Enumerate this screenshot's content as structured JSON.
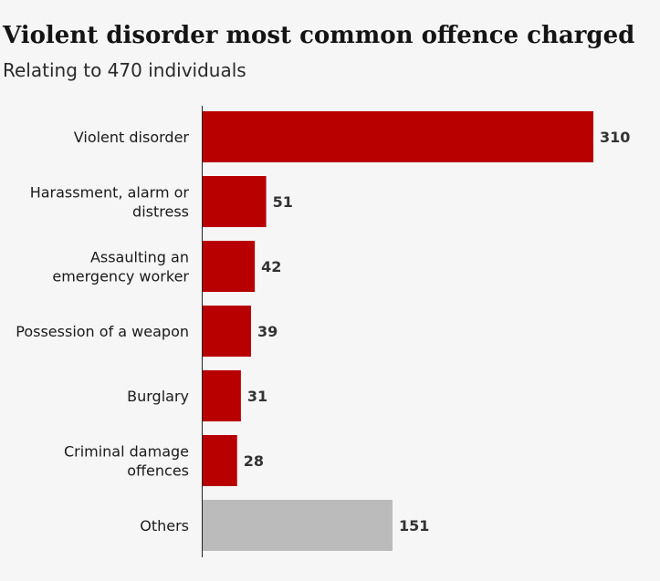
{
  "chart_data": {
    "type": "bar",
    "orientation": "horizontal",
    "title": "Violent disorder most common offence charged",
    "subtitle": "Relating to 470 individuals",
    "categories": [
      "Violent disorder",
      "Harassment, alarm or distress",
      "Assaulting an emergency worker",
      "Possession of a weapon",
      "Burglary",
      "Criminal damage offences",
      "Others"
    ],
    "category_lines": [
      [
        "Violent disorder"
      ],
      [
        "Harassment, alarm or",
        "distress"
      ],
      [
        "Assaulting an",
        "emergency worker"
      ],
      [
        "Possession of a weapon"
      ],
      [
        "Burglary"
      ],
      [
        "Criminal damage",
        "offences"
      ],
      [
        "Others"
      ]
    ],
    "values": [
      310,
      51,
      42,
      39,
      31,
      28,
      151
    ],
    "value_labels": [
      "310",
      "51",
      "42",
      "39",
      "31",
      "28",
      "151"
    ],
    "colors": [
      "#b80000",
      "#b80000",
      "#b80000",
      "#b80000",
      "#b80000",
      "#b80000",
      "#bbbbbb"
    ],
    "xlim": [
      0,
      310
    ],
    "xlabel": "",
    "ylabel": "",
    "grid": false,
    "legend": "none"
  },
  "colors": {
    "accent": "#b80000",
    "other": "#bbbbbb",
    "axis": "#222222",
    "background": "#f6f6f6"
  }
}
